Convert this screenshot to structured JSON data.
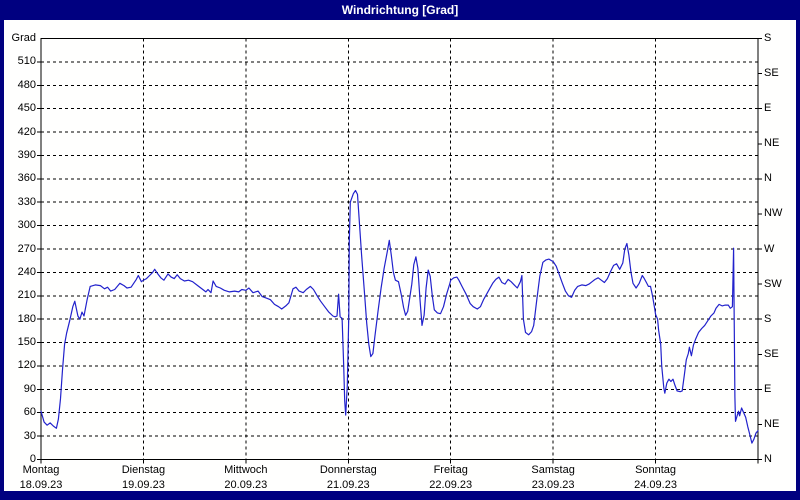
{
  "title": "Windrichtung [Grad]",
  "colors": {
    "window_frame": "#000080",
    "title_text": "#ffffff",
    "plot_background": "#fffffe",
    "line": "#2222cc",
    "grid": "#000000",
    "text": "#000000"
  },
  "chart_data": {
    "type": "line",
    "title": "Windrichtung [Grad]",
    "grid": "dashed",
    "y_axis": {
      "unit_label": "Grad",
      "min": 0,
      "max": 540,
      "grid_step": 30,
      "left_tick_values": [
        510,
        480,
        450,
        420,
        390,
        360,
        330,
        300,
        270,
        240,
        210,
        180,
        150,
        120,
        90,
        60,
        30,
        0
      ]
    },
    "right_axis": {
      "compass_ticks": [
        {
          "value": 540,
          "label": "S"
        },
        {
          "value": 495,
          "label": "SE"
        },
        {
          "value": 450,
          "label": "E"
        },
        {
          "value": 405,
          "label": "NE"
        },
        {
          "value": 360,
          "label": "N"
        },
        {
          "value": 315,
          "label": "NW"
        },
        {
          "value": 270,
          "label": "W"
        },
        {
          "value": 225,
          "label": "SW"
        },
        {
          "value": 180,
          "label": "S"
        },
        {
          "value": 135,
          "label": "SE"
        },
        {
          "value": 90,
          "label": "E"
        },
        {
          "value": 45,
          "label": "NE"
        },
        {
          "value": 0,
          "label": "N"
        }
      ]
    },
    "x_axis": {
      "span_days": 7,
      "days": [
        {
          "name": "Montag",
          "date": "18.09.23"
        },
        {
          "name": "Dienstag",
          "date": "19.09.23"
        },
        {
          "name": "Mittwoch",
          "date": "20.09.23"
        },
        {
          "name": "Donnerstag",
          "date": "21.09.23"
        },
        {
          "name": "Freitag",
          "date": "22.09.23"
        },
        {
          "name": "Samstag",
          "date": "23.09.23"
        },
        {
          "name": "Sonntag",
          "date": "24.09.23"
        }
      ]
    },
    "series": [
      {
        "name": "Windrichtung",
        "color": "#2222cc",
        "points": [
          [
            0.0,
            62
          ],
          [
            0.03,
            48
          ],
          [
            0.06,
            44
          ],
          [
            0.09,
            47
          ],
          [
            0.12,
            43
          ],
          [
            0.15,
            40
          ],
          [
            0.17,
            52
          ],
          [
            0.19,
            78
          ],
          [
            0.21,
            115
          ],
          [
            0.23,
            148
          ],
          [
            0.25,
            162
          ],
          [
            0.28,
            178
          ],
          [
            0.31,
            196
          ],
          [
            0.33,
            203
          ],
          [
            0.36,
            184
          ],
          [
            0.38,
            180
          ],
          [
            0.4,
            189
          ],
          [
            0.42,
            184
          ],
          [
            0.45,
            205
          ],
          [
            0.48,
            222
          ],
          [
            0.53,
            224
          ],
          [
            0.58,
            223
          ],
          [
            0.62,
            219
          ],
          [
            0.65,
            221
          ],
          [
            0.68,
            216
          ],
          [
            0.72,
            218
          ],
          [
            0.77,
            226
          ],
          [
            0.81,
            223
          ],
          [
            0.84,
            220
          ],
          [
            0.88,
            221
          ],
          [
            0.93,
            231
          ],
          [
            0.95,
            236
          ],
          [
            0.98,
            228
          ],
          [
            1.0,
            230
          ],
          [
            1.03,
            232
          ],
          [
            1.06,
            236
          ],
          [
            1.09,
            240
          ],
          [
            1.11,
            244
          ],
          [
            1.14,
            238
          ],
          [
            1.17,
            233
          ],
          [
            1.2,
            230
          ],
          [
            1.24,
            238
          ],
          [
            1.27,
            234
          ],
          [
            1.3,
            232
          ],
          [
            1.33,
            237
          ],
          [
            1.36,
            232
          ],
          [
            1.4,
            229
          ],
          [
            1.44,
            230
          ],
          [
            1.48,
            228
          ],
          [
            1.53,
            223
          ],
          [
            1.58,
            218
          ],
          [
            1.61,
            215
          ],
          [
            1.63,
            218
          ],
          [
            1.66,
            214
          ],
          [
            1.68,
            229
          ],
          [
            1.71,
            222
          ],
          [
            1.75,
            220
          ],
          [
            1.79,
            217
          ],
          [
            1.84,
            215
          ],
          [
            1.89,
            216
          ],
          [
            1.93,
            215
          ],
          [
            1.96,
            218
          ],
          [
            2.0,
            217
          ],
          [
            2.03,
            220
          ],
          [
            2.07,
            214
          ],
          [
            2.12,
            216
          ],
          [
            2.16,
            209
          ],
          [
            2.2,
            207
          ],
          [
            2.24,
            205
          ],
          [
            2.28,
            199
          ],
          [
            2.32,
            196
          ],
          [
            2.35,
            193
          ],
          [
            2.39,
            197
          ],
          [
            2.42,
            201
          ],
          [
            2.46,
            219
          ],
          [
            2.49,
            221
          ],
          [
            2.52,
            216
          ],
          [
            2.56,
            214
          ],
          [
            2.59,
            218
          ],
          [
            2.63,
            222
          ],
          [
            2.66,
            218
          ],
          [
            2.7,
            209
          ],
          [
            2.73,
            203
          ],
          [
            2.77,
            196
          ],
          [
            2.81,
            189
          ],
          [
            2.85,
            184
          ],
          [
            2.87,
            183
          ],
          [
            2.89,
            184
          ],
          [
            2.905,
            212
          ],
          [
            2.92,
            183
          ],
          [
            2.94,
            181
          ],
          [
            2.955,
            120
          ],
          [
            2.965,
            75
          ],
          [
            2.975,
            57
          ],
          [
            2.99,
            95
          ],
          [
            3.005,
            185
          ],
          [
            3.01,
            280
          ],
          [
            3.02,
            330
          ],
          [
            3.05,
            341
          ],
          [
            3.07,
            345
          ],
          [
            3.09,
            340
          ],
          [
            3.11,
            300
          ],
          [
            3.13,
            262
          ],
          [
            3.16,
            210
          ],
          [
            3.18,
            175
          ],
          [
            3.2,
            148
          ],
          [
            3.22,
            132
          ],
          [
            3.24,
            136
          ],
          [
            3.26,
            158
          ],
          [
            3.29,
            190
          ],
          [
            3.32,
            220
          ],
          [
            3.35,
            245
          ],
          [
            3.38,
            266
          ],
          [
            3.4,
            281
          ],
          [
            3.42,
            262
          ],
          [
            3.44,
            240
          ],
          [
            3.46,
            230
          ],
          [
            3.49,
            228
          ],
          [
            3.52,
            210
          ],
          [
            3.54,
            195
          ],
          [
            3.56,
            185
          ],
          [
            3.58,
            190
          ],
          [
            3.62,
            225
          ],
          [
            3.64,
            250
          ],
          [
            3.66,
            260
          ],
          [
            3.68,
            245
          ],
          [
            3.7,
            205
          ],
          [
            3.72,
            172
          ],
          [
            3.74,
            185
          ],
          [
            3.76,
            220
          ],
          [
            3.78,
            243
          ],
          [
            3.8,
            235
          ],
          [
            3.82,
            210
          ],
          [
            3.84,
            192
          ],
          [
            3.87,
            188
          ],
          [
            3.9,
            187
          ],
          [
            3.93,
            196
          ],
          [
            3.96,
            212
          ],
          [
            3.99,
            225
          ],
          [
            4.0,
            230
          ],
          [
            4.03,
            233
          ],
          [
            4.06,
            234
          ],
          [
            4.08,
            230
          ],
          [
            4.11,
            222
          ],
          [
            4.15,
            212
          ],
          [
            4.19,
            200
          ],
          [
            4.22,
            196
          ],
          [
            4.26,
            193
          ],
          [
            4.29,
            196
          ],
          [
            4.32,
            205
          ],
          [
            4.35,
            212
          ],
          [
            4.38,
            219
          ],
          [
            4.41,
            226
          ],
          [
            4.44,
            231
          ],
          [
            4.47,
            234
          ],
          [
            4.5,
            227
          ],
          [
            4.53,
            225
          ],
          [
            4.56,
            231
          ],
          [
            4.59,
            228
          ],
          [
            4.62,
            224
          ],
          [
            4.65,
            220
          ],
          [
            4.68,
            228
          ],
          [
            4.695,
            236
          ],
          [
            4.71,
            180
          ],
          [
            4.73,
            163
          ],
          [
            4.76,
            160
          ],
          [
            4.79,
            164
          ],
          [
            4.81,
            172
          ],
          [
            4.84,
            205
          ],
          [
            4.87,
            235
          ],
          [
            4.9,
            253
          ],
          [
            4.93,
            256
          ],
          [
            4.96,
            257
          ],
          [
            4.985,
            255
          ],
          [
            5.0,
            254
          ],
          [
            5.03,
            248
          ],
          [
            5.06,
            237
          ],
          [
            5.09,
            226
          ],
          [
            5.12,
            216
          ],
          [
            5.15,
            210
          ],
          [
            5.18,
            208
          ],
          [
            5.21,
            217
          ],
          [
            5.24,
            222
          ],
          [
            5.28,
            224
          ],
          [
            5.32,
            223
          ],
          [
            5.35,
            225
          ],
          [
            5.38,
            228
          ],
          [
            5.41,
            231
          ],
          [
            5.44,
            233
          ],
          [
            5.47,
            230
          ],
          [
            5.5,
            227
          ],
          [
            5.53,
            232
          ],
          [
            5.56,
            241
          ],
          [
            5.59,
            249
          ],
          [
            5.62,
            251
          ],
          [
            5.65,
            244
          ],
          [
            5.68,
            252
          ],
          [
            5.7,
            270
          ],
          [
            5.72,
            277
          ],
          [
            5.74,
            262
          ],
          [
            5.76,
            240
          ],
          [
            5.78,
            226
          ],
          [
            5.81,
            220
          ],
          [
            5.84,
            226
          ],
          [
            5.87,
            236
          ],
          [
            5.89,
            232
          ],
          [
            5.91,
            227
          ],
          [
            5.93,
            222
          ],
          [
            5.95,
            222
          ],
          [
            5.97,
            210
          ],
          [
            5.99,
            195
          ],
          [
            6.0,
            186
          ],
          [
            6.02,
            180
          ],
          [
            6.03,
            166
          ],
          [
            6.05,
            148
          ],
          [
            6.06,
            120
          ],
          [
            6.08,
            92
          ],
          [
            6.09,
            85
          ],
          [
            6.11,
            98
          ],
          [
            6.13,
            103
          ],
          [
            6.15,
            100
          ],
          [
            6.17,
            103
          ],
          [
            6.19,
            95
          ],
          [
            6.21,
            88
          ],
          [
            6.24,
            87
          ],
          [
            6.26,
            88
          ],
          [
            6.28,
            108
          ],
          [
            6.3,
            128
          ],
          [
            6.32,
            136
          ],
          [
            6.33,
            144
          ],
          [
            6.35,
            133
          ],
          [
            6.37,
            147
          ],
          [
            6.39,
            154
          ],
          [
            6.42,
            163
          ],
          [
            6.45,
            168
          ],
          [
            6.48,
            172
          ],
          [
            6.51,
            178
          ],
          [
            6.54,
            184
          ],
          [
            6.57,
            188
          ],
          [
            6.59,
            194
          ],
          [
            6.62,
            199
          ],
          [
            6.65,
            197
          ],
          [
            6.68,
            198
          ],
          [
            6.71,
            198
          ],
          [
            6.73,
            194
          ],
          [
            6.75,
            196
          ],
          [
            6.757,
            240
          ],
          [
            6.762,
            271
          ],
          [
            6.768,
            180
          ],
          [
            6.774,
            80
          ],
          [
            6.78,
            49
          ],
          [
            6.81,
            62
          ],
          [
            6.82,
            56
          ],
          [
            6.84,
            66
          ],
          [
            6.86,
            60
          ],
          [
            6.88,
            54
          ],
          [
            6.9,
            42
          ],
          [
            6.92,
            32
          ],
          [
            6.94,
            21
          ],
          [
            6.96,
            26
          ],
          [
            6.98,
            34
          ],
          [
            7.0,
            37
          ]
        ]
      }
    ]
  }
}
